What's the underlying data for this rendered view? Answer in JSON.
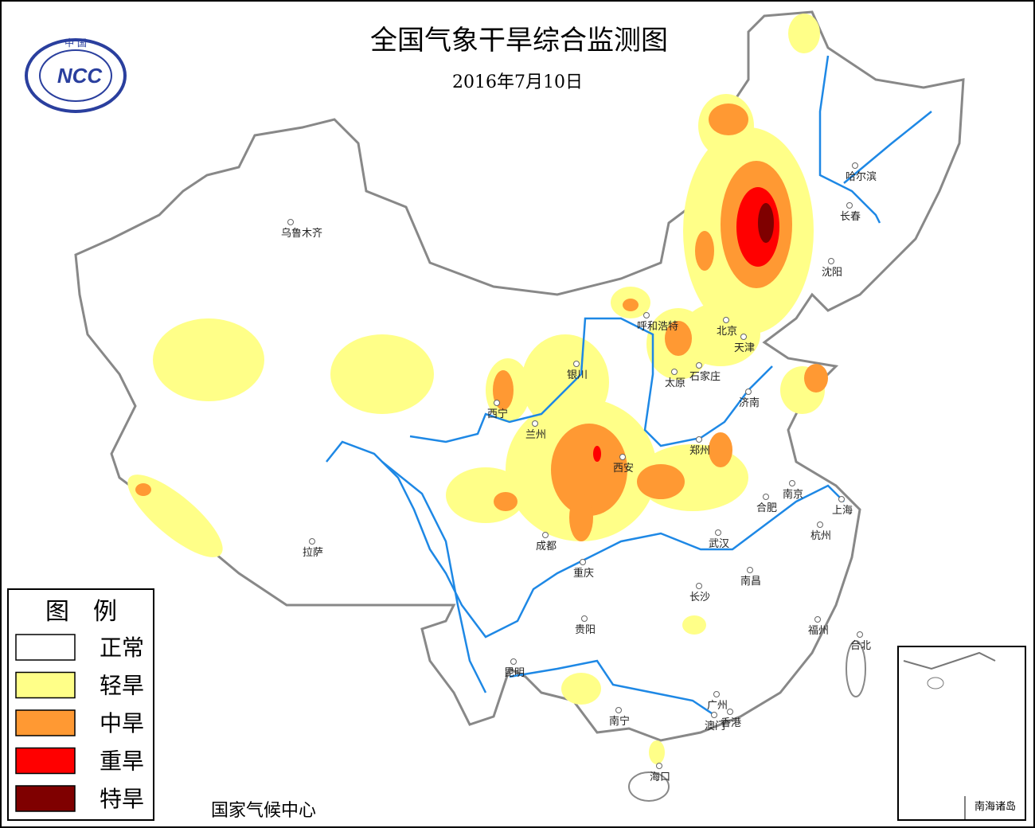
{
  "logo": {
    "top": "中 国",
    "text": "NCC"
  },
  "title": "全国气象干旱综合监测图",
  "date": "2016年7月10日",
  "legend": {
    "title": "图　例",
    "items": [
      {
        "label": "正常",
        "color": "#ffffff"
      },
      {
        "label": "轻旱",
        "color": "#ffff88"
      },
      {
        "label": "中旱",
        "color": "#ff9933"
      },
      {
        "label": "重旱",
        "color": "#ff0000"
      },
      {
        "label": "特旱",
        "color": "#7f0000"
      }
    ]
  },
  "cities": [
    "乌鲁木齐",
    "哈尔滨",
    "长春",
    "沈阳",
    "呼和浩特",
    "北京",
    "天津",
    "银川",
    "太原",
    "石家庄",
    "西宁",
    "兰州",
    "济南",
    "郑州",
    "西安",
    "南京",
    "合肥",
    "上海",
    "成都",
    "武汉",
    "杭州",
    "拉萨",
    "重庆",
    "南昌",
    "长沙",
    "贵阳",
    "福州",
    "台北",
    "昆明",
    "广州",
    "香港",
    "澳门",
    "南宁",
    "海口"
  ],
  "source": "国家气候中心",
  "inset": "南海诸岛"
}
